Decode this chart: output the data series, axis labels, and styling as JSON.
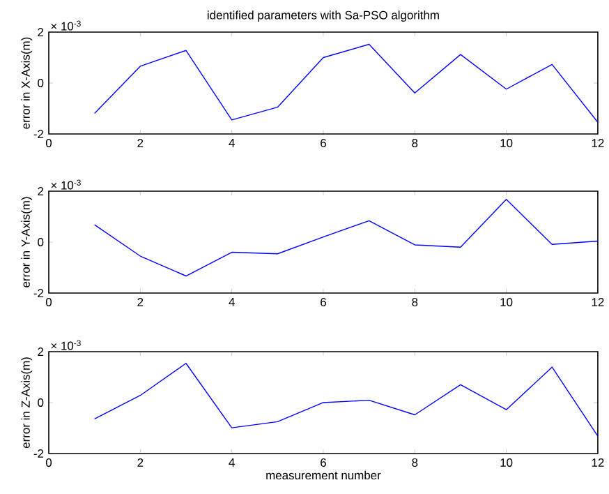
{
  "chart_data": [
    {
      "type": "line",
      "title": "identified parameters with Sa-PSO algorithm",
      "ylabel": "error in X-Axis(m)",
      "annotations": [
        "× 10$^{-3}$"
      ],
      "color": "#0000ff",
      "x": [
        1,
        2,
        3,
        4,
        5,
        6,
        7,
        8,
        9,
        10,
        11,
        12
      ],
      "values": [
        -1.19,
        0.66,
        1.28,
        -1.45,
        -0.95,
        1.0,
        1.52,
        -0.39,
        1.12,
        -0.24,
        0.73,
        -1.54
      ],
      "xlim": [
        0,
        12
      ],
      "ylim": [
        -2,
        2
      ],
      "xticks": [
        0,
        2,
        4,
        6,
        8,
        10,
        12
      ],
      "yticks": [
        -2,
        0,
        2
      ]
    },
    {
      "type": "line",
      "ylabel": "error in Y-Axis(m)",
      "annotations": [
        "× 10$^{-3}$"
      ],
      "color": "#0000ff",
      "x": [
        1,
        2,
        3,
        4,
        5,
        6,
        7,
        8,
        9,
        10,
        11,
        12
      ],
      "values": [
        0.68,
        -0.55,
        -1.33,
        -0.4,
        -0.46,
        0.2,
        0.84,
        -0.11,
        -0.2,
        1.68,
        -0.09,
        0.04
      ],
      "xlim": [
        0,
        12
      ],
      "ylim": [
        -2,
        2
      ],
      "xticks": [
        0,
        2,
        4,
        6,
        8,
        10,
        12
      ],
      "yticks": [
        -2,
        0,
        2
      ]
    },
    {
      "type": "line",
      "xlabel": "measurement number",
      "ylabel": "error in Z-Axis(m)",
      "annotations": [
        "× 10$^{-3}$"
      ],
      "color": "#0000ff",
      "x": [
        1,
        2,
        3,
        4,
        5,
        6,
        7,
        8,
        9,
        10,
        11,
        12
      ],
      "values": [
        -0.64,
        0.28,
        1.54,
        -0.99,
        -0.75,
        0.0,
        0.09,
        -0.48,
        0.7,
        -0.28,
        1.39,
        -1.32
      ],
      "xlim": [
        0,
        12
      ],
      "ylim": [
        -2,
        2
      ],
      "xticks": [
        0,
        2,
        4,
        6,
        8,
        10,
        12
      ],
      "yticks": [
        -2,
        0,
        2
      ]
    }
  ]
}
